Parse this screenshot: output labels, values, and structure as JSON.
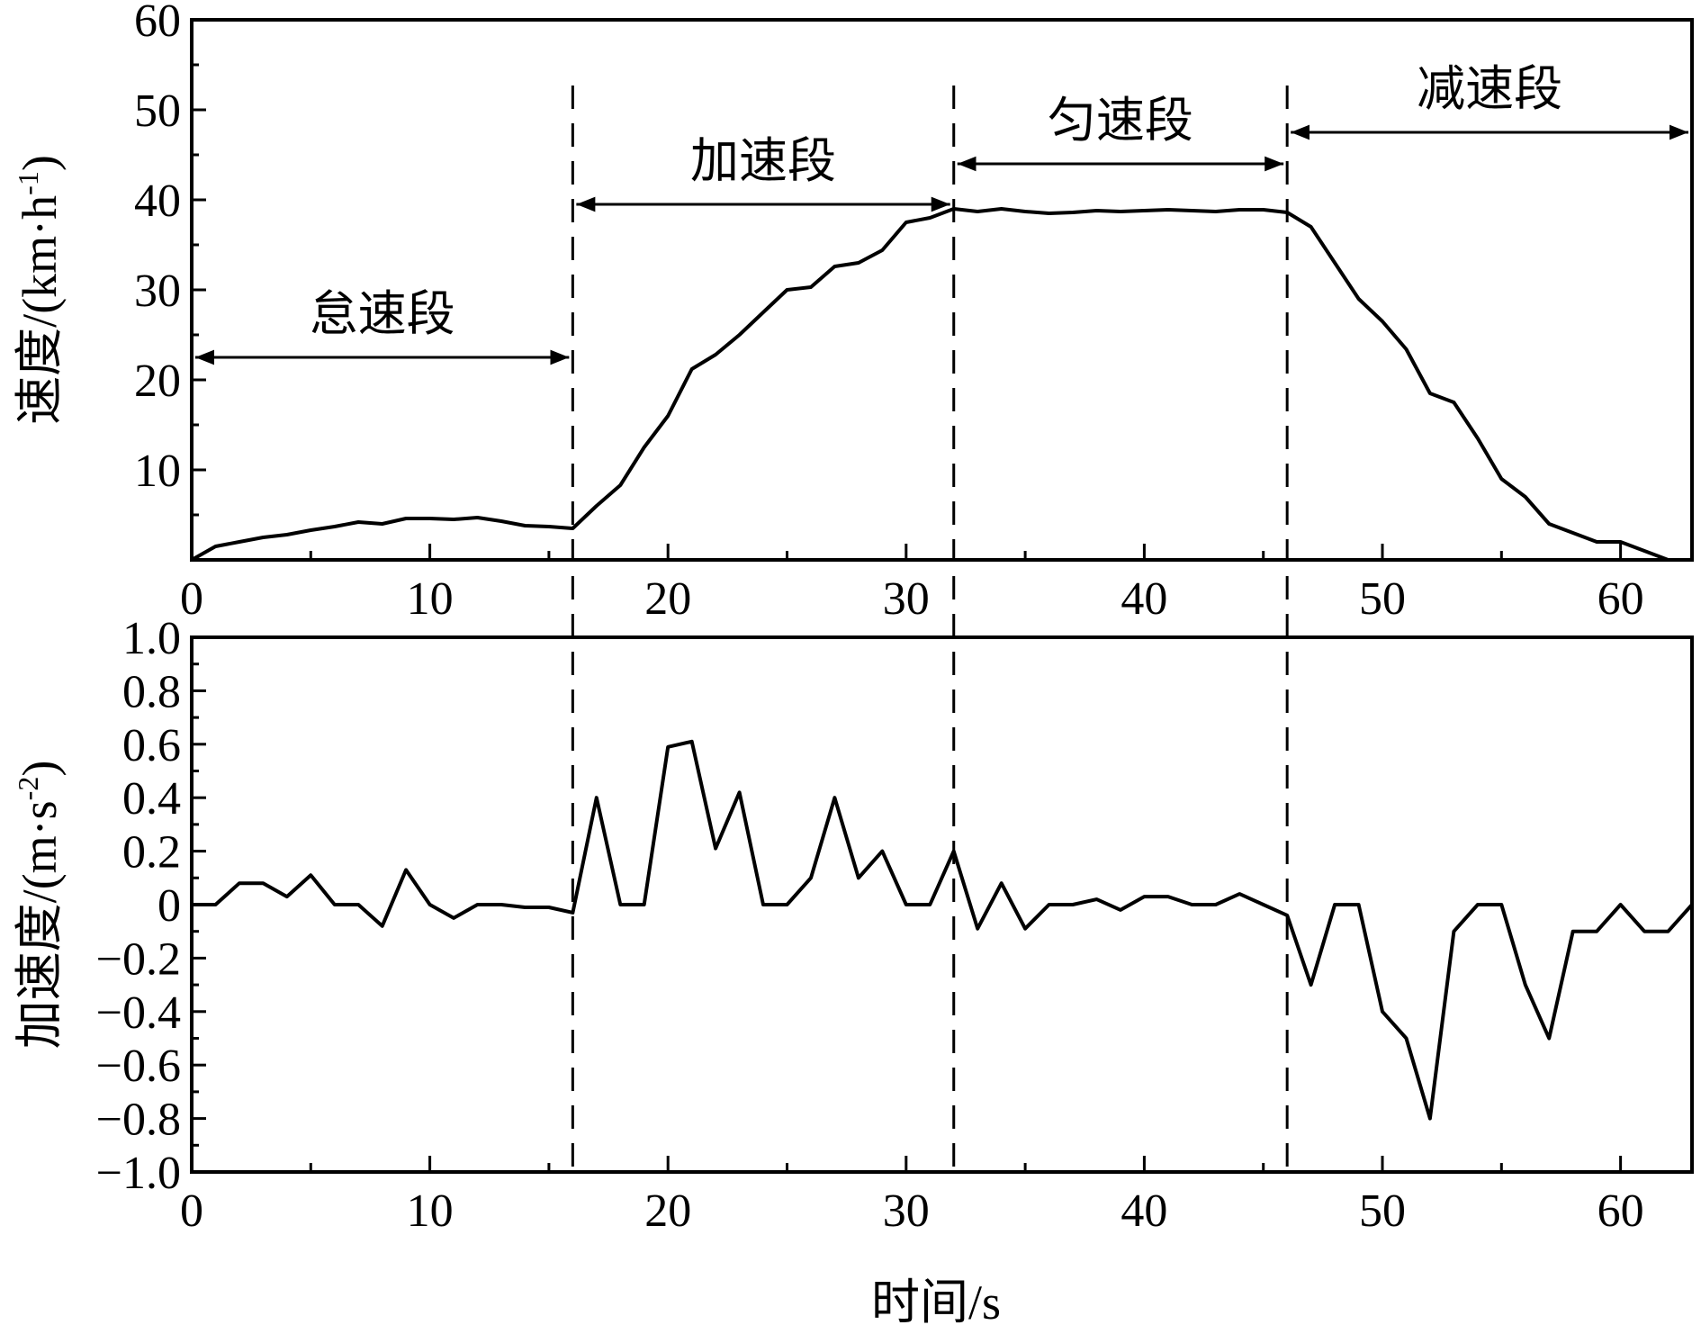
{
  "chart_data": [
    {
      "type": "line",
      "ylabel": "速度/(km·h-1)",
      "ylabel_parts": {
        "main": "速度/(km·h",
        "sup": "-1",
        "close": ")"
      },
      "xlim": [
        0,
        63
      ],
      "ylim": [
        0,
        60
      ],
      "xticks": [
        0,
        10,
        20,
        30,
        40,
        50,
        60
      ],
      "yticks": [
        10,
        20,
        30,
        40,
        50,
        60
      ],
      "x": [
        0,
        1,
        2,
        3,
        4,
        5,
        6,
        7,
        8,
        9,
        10,
        11,
        12,
        13,
        14,
        15,
        16,
        17,
        18,
        19,
        20,
        21,
        22,
        23,
        24,
        25,
        26,
        27,
        28,
        29,
        30,
        31,
        32,
        33,
        34,
        35,
        36,
        37,
        38,
        39,
        40,
        41,
        42,
        43,
        44,
        45,
        46,
        47,
        48,
        49,
        50,
        51,
        52,
        53,
        54,
        55,
        56,
        57,
        58,
        59,
        60,
        61,
        62
      ],
      "values": [
        0,
        1.5,
        2,
        2.5,
        2.8,
        3.3,
        3.7,
        4.2,
        4,
        4.6,
        4.6,
        4.5,
        4.7,
        4.3,
        3.8,
        3.7,
        3.5,
        6,
        8.3,
        12.5,
        16,
        21.2,
        22.8,
        25,
        27.5,
        30,
        30.3,
        32.6,
        33,
        34.4,
        37.5,
        38,
        39,
        38.7,
        39,
        38.7,
        38.5,
        38.6,
        38.8,
        38.7,
        38.8,
        38.9,
        38.8,
        38.7,
        38.9,
        38.9,
        38.6,
        37,
        33,
        29,
        26.5,
        23.4,
        18.5,
        17.5,
        13.5,
        9,
        7,
        4,
        3,
        2,
        2,
        1,
        0
      ],
      "phase_boundaries": [
        16,
        32,
        46
      ],
      "phases": [
        {
          "label": "怠速段",
          "from": 0,
          "to": 16,
          "arrow_y": 22.5
        },
        {
          "label": "加速段",
          "from": 16,
          "to": 32,
          "arrow_y": 39.5
        },
        {
          "label": "匀速段",
          "from": 32,
          "to": 46,
          "arrow_y": 44
        },
        {
          "label": "减速段",
          "from": 46,
          "to": 63,
          "arrow_y": 47.5
        }
      ]
    },
    {
      "type": "line",
      "xlabel": "时间/s",
      "ylabel": "加速度/(m·s-2)",
      "ylabel_parts": {
        "main": "加速度/(m·s",
        "sup": "-2",
        "close": ")"
      },
      "xlim": [
        0,
        63
      ],
      "ylim": [
        -1.0,
        1.0
      ],
      "xticks": [
        0,
        10,
        20,
        30,
        40,
        50,
        60
      ],
      "yticks": [
        -1.0,
        -0.8,
        -0.6,
        -0.4,
        -0.2,
        0,
        0.2,
        0.4,
        0.6,
        0.8,
        1.0
      ],
      "ytick_labels": [
        "−1.0",
        "−0.8",
        "−0.6",
        "−0.4",
        "−0.2",
        "0",
        "0.2",
        "0.4",
        "0.6",
        "0.8",
        "1.0"
      ],
      "x": [
        0,
        1,
        2,
        3,
        4,
        5,
        6,
        7,
        8,
        9,
        10,
        11,
        12,
        13,
        14,
        15,
        16,
        17,
        18,
        19,
        20,
        21,
        22,
        23,
        24,
        25,
        26,
        27,
        28,
        29,
        30,
        31,
        32,
        33,
        34,
        35,
        36,
        37,
        38,
        39,
        40,
        41,
        42,
        43,
        44,
        45,
        46,
        47,
        48,
        49,
        50,
        51,
        52,
        53,
        54,
        55,
        56,
        57,
        58,
        59,
        60,
        61,
        62,
        63
      ],
      "values": [
        0,
        0,
        0.08,
        0.08,
        0.03,
        0.11,
        0,
        0,
        -0.08,
        0.13,
        0,
        -0.05,
        0,
        0,
        -0.01,
        -0.01,
        -0.03,
        0.4,
        0,
        0,
        0.59,
        0.61,
        0.21,
        0.42,
        0,
        0,
        0.1,
        0.4,
        0.1,
        0.2,
        0,
        0,
        0.2,
        -0.09,
        0.08,
        -0.09,
        0,
        0,
        0.02,
        -0.02,
        0.03,
        0.03,
        0,
        0,
        0.04,
        0,
        -0.04,
        -0.3,
        0,
        0,
        -0.4,
        -0.5,
        -0.8,
        -0.1,
        0,
        0,
        -0.3,
        -0.5,
        -0.1,
        -0.1,
        0,
        -0.1,
        -0.1,
        0
      ],
      "phase_boundaries": [
        16,
        32,
        46
      ]
    }
  ]
}
